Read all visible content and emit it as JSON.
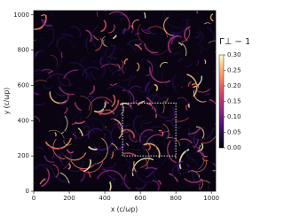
{
  "chart_data": {
    "type": "heatmap",
    "xlabel": "x (c/ωp)",
    "ylabel": "y (c/ωp)",
    "colorbar_label": "Γ⊥ − 1",
    "xlim": [
      0,
      1024
    ],
    "ylim": [
      0,
      1024
    ],
    "xticks": [
      0,
      200,
      400,
      600,
      800,
      1000
    ],
    "yticks": [
      0,
      200,
      400,
      600,
      800,
      1000
    ],
    "clim": [
      0,
      0.3
    ],
    "cticks": [
      {
        "value": 0,
        "label": "0.00"
      },
      {
        "value": 0.05,
        "label": "0.05"
      },
      {
        "value": 0.1,
        "label": "0.10"
      },
      {
        "value": 0.15,
        "label": "0.15"
      },
      {
        "value": 0.2,
        "label": "0.20"
      },
      {
        "value": 0.25,
        "label": "0.25"
      },
      {
        "value": 0.3,
        "label": "0.30"
      }
    ],
    "colormap": "magma",
    "highlight_box": {
      "x": [
        500,
        800
      ],
      "y": [
        200,
        500
      ]
    }
  }
}
